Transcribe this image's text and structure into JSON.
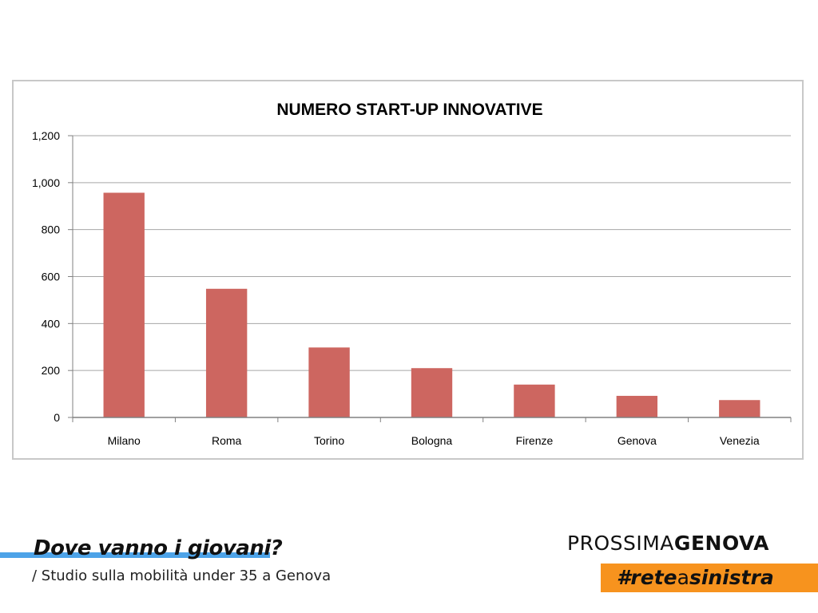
{
  "chart_data": {
    "type": "bar",
    "title": "NUMERO START-UP INNOVATIVE",
    "categories": [
      "Milano",
      "Roma",
      "Torino",
      "Bologna",
      "Firenze",
      "Genova",
      "Venezia"
    ],
    "values": [
      957,
      548,
      298,
      210,
      140,
      92,
      74
    ],
    "ylim": [
      0,
      1200
    ],
    "yticks": [
      0,
      200,
      400,
      600,
      800,
      1000,
      1200
    ],
    "ytick_labels": [
      "0",
      "200",
      "400",
      "600",
      "800",
      "1,000",
      "1,200"
    ],
    "grid": true,
    "legend": "none",
    "bar_color": "#cd6660"
  },
  "footer": {
    "title": "Dove vanno i giovani?",
    "subtitle": "/ Studio sulla mobilità under 35 a Genova",
    "brand_light": "PROSSIMA",
    "brand_bold": "GENOVA",
    "hashtag_hash": "#",
    "hashtag_rete": "rete",
    "hashtag_a": "a",
    "hashtag_sinistra": "sinistra",
    "accent_blue": "#4da3e8",
    "accent_orange": "#f7931e"
  }
}
